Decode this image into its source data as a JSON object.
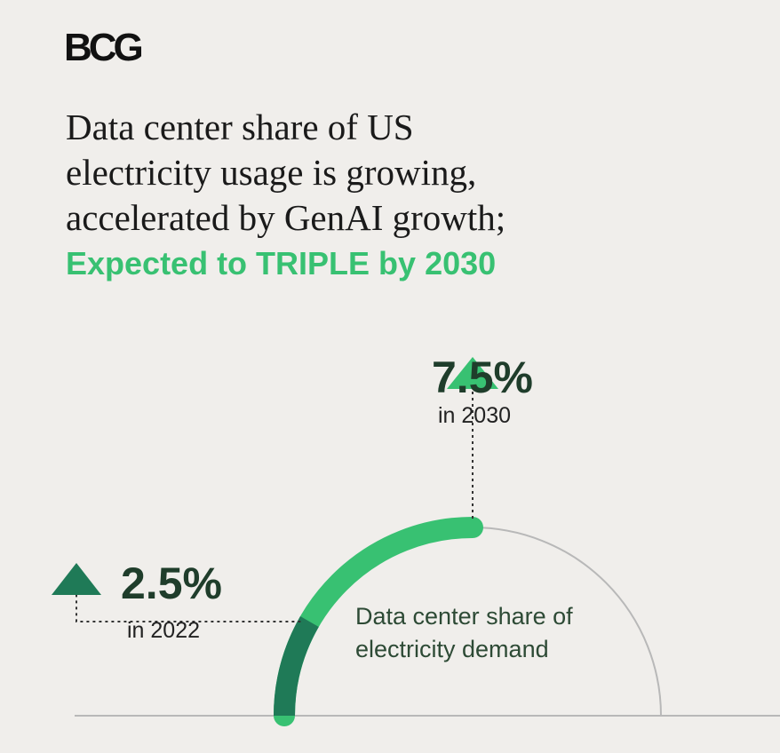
{
  "logo": {
    "text": "BCG"
  },
  "headline": {
    "lines": [
      "Data center share of US",
      "electricity usage is growing,",
      "accelerated by GenAI growth;"
    ],
    "highlight": "Expected to TRIPLE by 2030"
  },
  "chart_data": {
    "type": "gauge",
    "title": "",
    "center_label": [
      "Data center share of",
      "electricity demand"
    ],
    "series": [
      {
        "year": "2022",
        "value": 2.5,
        "label": "2.5%",
        "sublabel": "in 2022",
        "color": "#1f7a57"
      },
      {
        "year": "2030",
        "value": 7.5,
        "label": "7.5%",
        "sublabel": "in 2030",
        "color": "#38c172"
      }
    ],
    "arc_track_color": "#b8b8b8",
    "arrow_color_2022": "#1f7a57",
    "arrow_color_2030": "#38c172"
  }
}
